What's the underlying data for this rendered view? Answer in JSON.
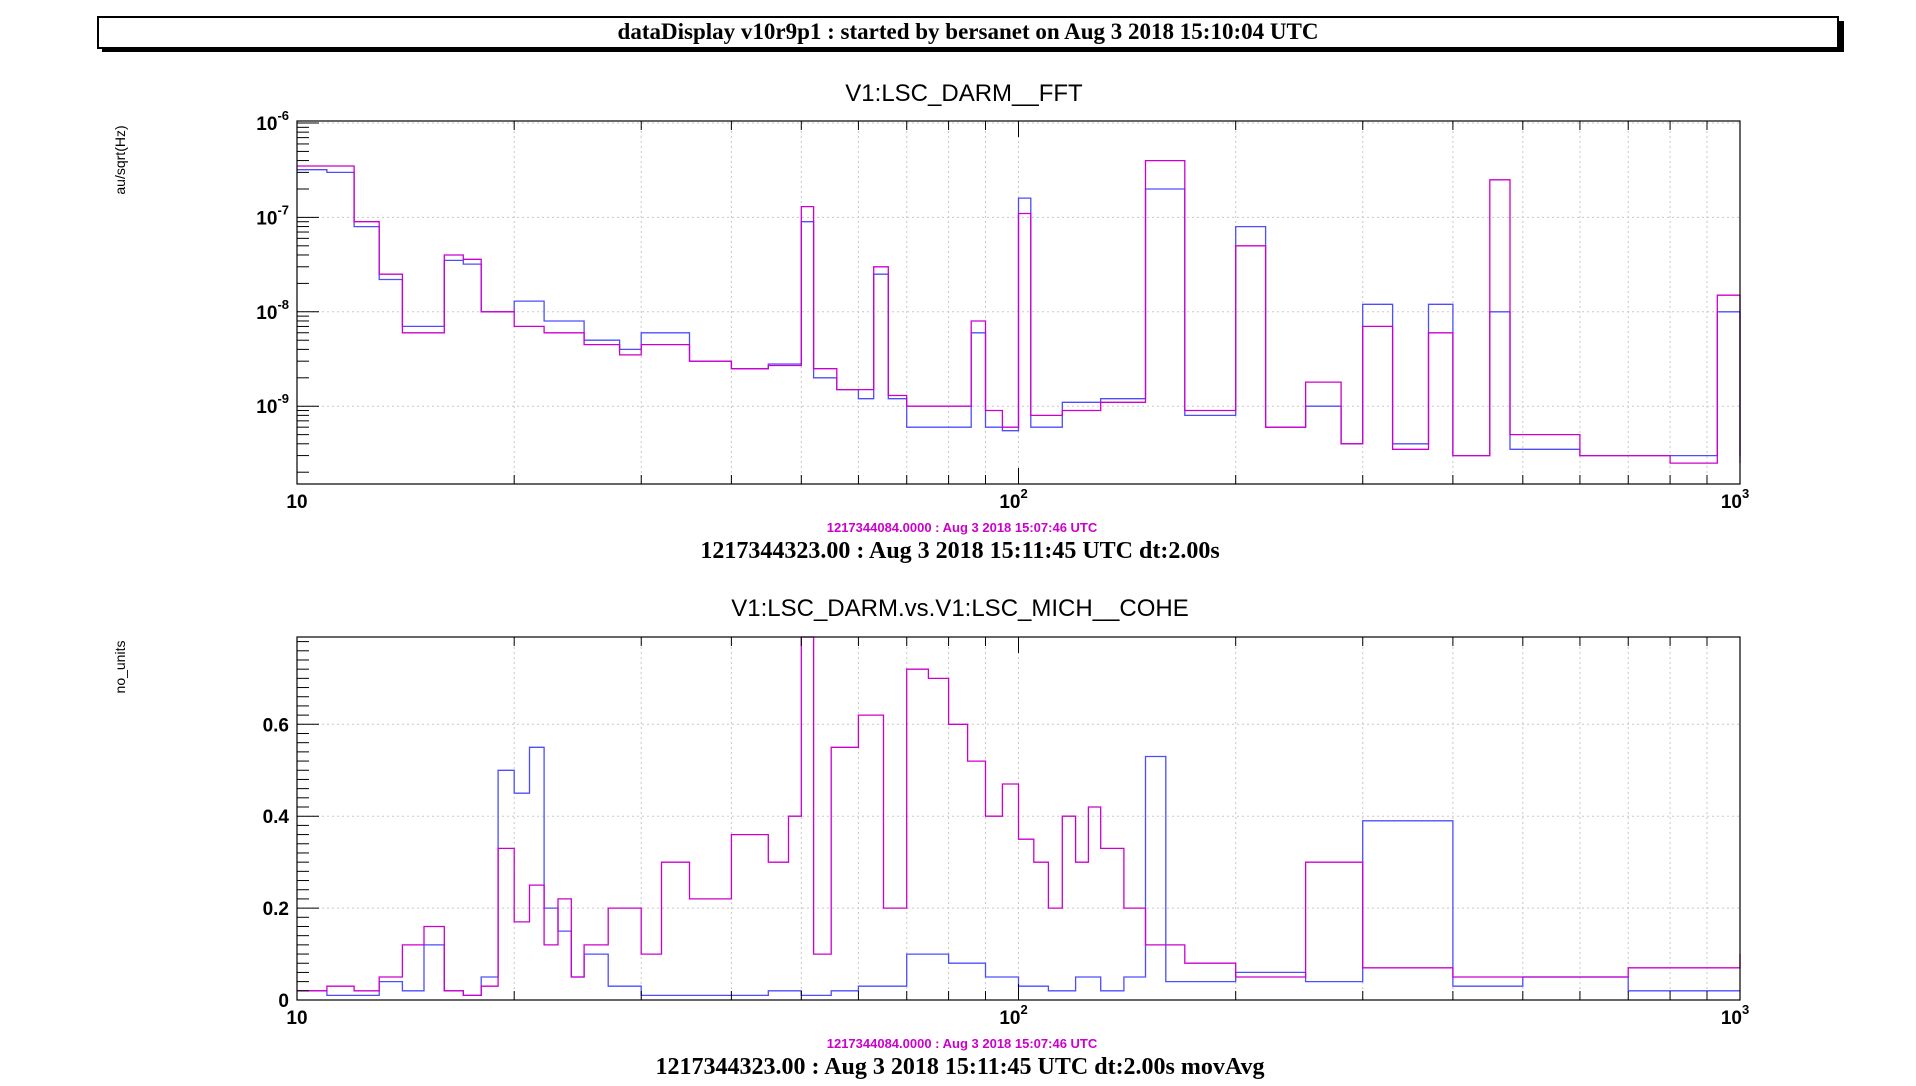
{
  "window": {
    "banner": "dataDisplay v10r9p1 : started by bersanet on Aug  3 2018 15:10:04 UTC"
  },
  "colors": {
    "series_blue": "#4d4dff",
    "series_magenta": "#cc00cc",
    "grid": "#c8c8c8",
    "timestamp_magenta": "#cc00cc"
  },
  "chart_data": [
    {
      "type": "line",
      "title": "V1:LSC_DARM__FFT",
      "ylabel": "au/sqrt(Hz)",
      "xscale": "log",
      "yscale": "log",
      "xlim": [
        10,
        1000
      ],
      "ylim": [
        1.5e-10,
        1.05e-06
      ],
      "grid": true,
      "x_ticks": [
        {
          "value": 10,
          "label": "10"
        },
        {
          "value": 100,
          "label": "10",
          "sup": "2"
        },
        {
          "value": 1000,
          "label": "10",
          "sup": "3"
        }
      ],
      "y_ticks": [
        {
          "value": 1e-06,
          "label": "10",
          "sup": "-6"
        },
        {
          "value": 1e-07,
          "label": "10",
          "sup": "-7"
        },
        {
          "value": 1e-08,
          "label": "10",
          "sup": "-8"
        },
        {
          "value": 1e-09,
          "label": "10",
          "sup": "-9"
        }
      ],
      "ref_timestamp": "1217344084.0000 : Aug  3 2018 15:07:46 UTC",
      "footer": "1217344323.00 : Aug  3 2018 15:11:45 UTC dt:2.00s",
      "series": [
        {
          "color": "#4d4dff",
          "x": [
            10,
            11,
            12,
            13,
            14,
            16,
            17,
            18,
            20,
            22,
            25,
            28,
            30,
            35,
            40,
            45,
            50,
            52,
            56,
            60,
            63,
            66,
            70,
            80,
            86,
            90,
            95,
            100,
            104,
            115,
            130,
            150,
            170,
            200,
            220,
            250,
            280,
            300,
            330,
            370,
            400,
            450,
            480,
            600,
            800,
            930,
            1000
          ],
          "y": [
            3.2e-07,
            3e-07,
            8e-08,
            2.2e-08,
            7e-09,
            3.5e-08,
            3.2e-08,
            1e-08,
            1.3e-08,
            8e-09,
            5e-09,
            4e-09,
            6e-09,
            3e-09,
            2.5e-09,
            2.8e-09,
            9e-08,
            2e-09,
            1.5e-09,
            1.2e-09,
            2.5e-08,
            1.2e-09,
            6e-10,
            6e-10,
            6e-09,
            6e-10,
            5.5e-10,
            1.6e-07,
            6e-10,
            1.1e-09,
            1.2e-09,
            2e-07,
            8e-10,
            8e-08,
            6e-10,
            1e-09,
            4e-10,
            1.2e-08,
            4e-10,
            1.2e-08,
            3e-10,
            1e-08,
            3.5e-10,
            3e-10,
            3e-10,
            1e-08,
            3e-10
          ]
        },
        {
          "color": "#cc00cc",
          "x": [
            10,
            11,
            12,
            13,
            14,
            16,
            17,
            18,
            20,
            22,
            25,
            28,
            30,
            35,
            40,
            45,
            50,
            52,
            56,
            60,
            63,
            66,
            70,
            80,
            86,
            90,
            95,
            100,
            104,
            115,
            130,
            150,
            170,
            200,
            220,
            250,
            280,
            300,
            330,
            370,
            400,
            450,
            480,
            600,
            800,
            930,
            1000
          ],
          "y": [
            3.5e-07,
            3.5e-07,
            9e-08,
            2.5e-08,
            6e-09,
            4e-08,
            3.6e-08,
            1e-08,
            7e-09,
            6e-09,
            4.5e-09,
            3.5e-09,
            4.5e-09,
            3e-09,
            2.5e-09,
            2.7e-09,
            1.3e-07,
            2.5e-09,
            1.5e-09,
            1.5e-09,
            3e-08,
            1.3e-09,
            1e-09,
            1e-09,
            8e-09,
            9e-10,
            6e-10,
            1.1e-07,
            8e-10,
            9e-10,
            1.1e-09,
            4e-07,
            9e-10,
            5e-08,
            6e-10,
            1.8e-09,
            4e-10,
            7e-09,
            3.5e-10,
            6e-09,
            3e-10,
            2.5e-07,
            5e-10,
            3e-10,
            2.5e-10,
            1.5e-08,
            2.5e-10
          ]
        }
      ]
    },
    {
      "type": "line",
      "title": "V1:LSC_DARM.vs.V1:LSC_MICH__COHE",
      "ylabel": "no_units",
      "xscale": "log",
      "yscale": "linear",
      "xlim": [
        10,
        1000
      ],
      "ylim": [
        0,
        0.79
      ],
      "grid": true,
      "x_ticks": [
        {
          "value": 10,
          "label": "10"
        },
        {
          "value": 100,
          "label": "10",
          "sup": "2"
        },
        {
          "value": 1000,
          "label": "10",
          "sup": "3"
        }
      ],
      "y_ticks": [
        {
          "value": 0,
          "label": "0"
        },
        {
          "value": 0.2,
          "label": "0.2"
        },
        {
          "value": 0.4,
          "label": "0.4"
        },
        {
          "value": 0.6,
          "label": "0.6"
        }
      ],
      "ref_timestamp": "1217344084.0000 : Aug  3 2018 15:07:46 UTC",
      "footer": "1217344323.00 : Aug  3 2018 15:11:45 UTC dt:2.00s movAvg",
      "series": [
        {
          "color": "#4d4dff",
          "x": [
            10,
            11,
            12,
            13,
            14,
            15,
            16,
            17,
            18,
            19,
            20,
            21,
            22,
            23,
            24,
            25,
            27,
            30,
            35,
            40,
            45,
            50,
            55,
            60,
            70,
            80,
            90,
            100,
            110,
            120,
            130,
            140,
            150,
            160,
            200,
            250,
            300,
            400,
            500,
            700,
            1000
          ],
          "y": [
            0.02,
            0.01,
            0.01,
            0.04,
            0.02,
            0.12,
            0.02,
            0.01,
            0.05,
            0.5,
            0.45,
            0.55,
            0.2,
            0.15,
            0.05,
            0.1,
            0.03,
            0.01,
            0.01,
            0.01,
            0.02,
            0.01,
            0.02,
            0.03,
            0.1,
            0.08,
            0.05,
            0.03,
            0.02,
            0.05,
            0.02,
            0.05,
            0.53,
            0.04,
            0.06,
            0.04,
            0.39,
            0.03,
            0.05,
            0.02,
            0.02
          ]
        },
        {
          "color": "#cc00cc",
          "x": [
            10,
            11,
            12,
            13,
            14,
            15,
            16,
            17,
            18,
            19,
            20,
            21,
            22,
            23,
            24,
            25,
            27,
            30,
            32,
            35,
            40,
            45,
            48,
            50,
            52,
            55,
            60,
            65,
            70,
            75,
            80,
            85,
            90,
            95,
            100,
            105,
            110,
            115,
            120,
            125,
            130,
            140,
            150,
            170,
            200,
            250,
            300,
            400,
            500,
            700,
            1000
          ],
          "y": [
            0.02,
            0.03,
            0.02,
            0.05,
            0.12,
            0.16,
            0.02,
            0.01,
            0.03,
            0.33,
            0.17,
            0.25,
            0.12,
            0.22,
            0.05,
            0.12,
            0.2,
            0.1,
            0.3,
            0.22,
            0.36,
            0.3,
            0.4,
            0.8,
            0.1,
            0.55,
            0.62,
            0.2,
            0.72,
            0.7,
            0.6,
            0.52,
            0.4,
            0.47,
            0.35,
            0.3,
            0.2,
            0.4,
            0.3,
            0.42,
            0.33,
            0.2,
            0.12,
            0.08,
            0.05,
            0.3,
            0.07,
            0.05,
            0.05,
            0.07,
            0.1
          ]
        }
      ]
    }
  ]
}
